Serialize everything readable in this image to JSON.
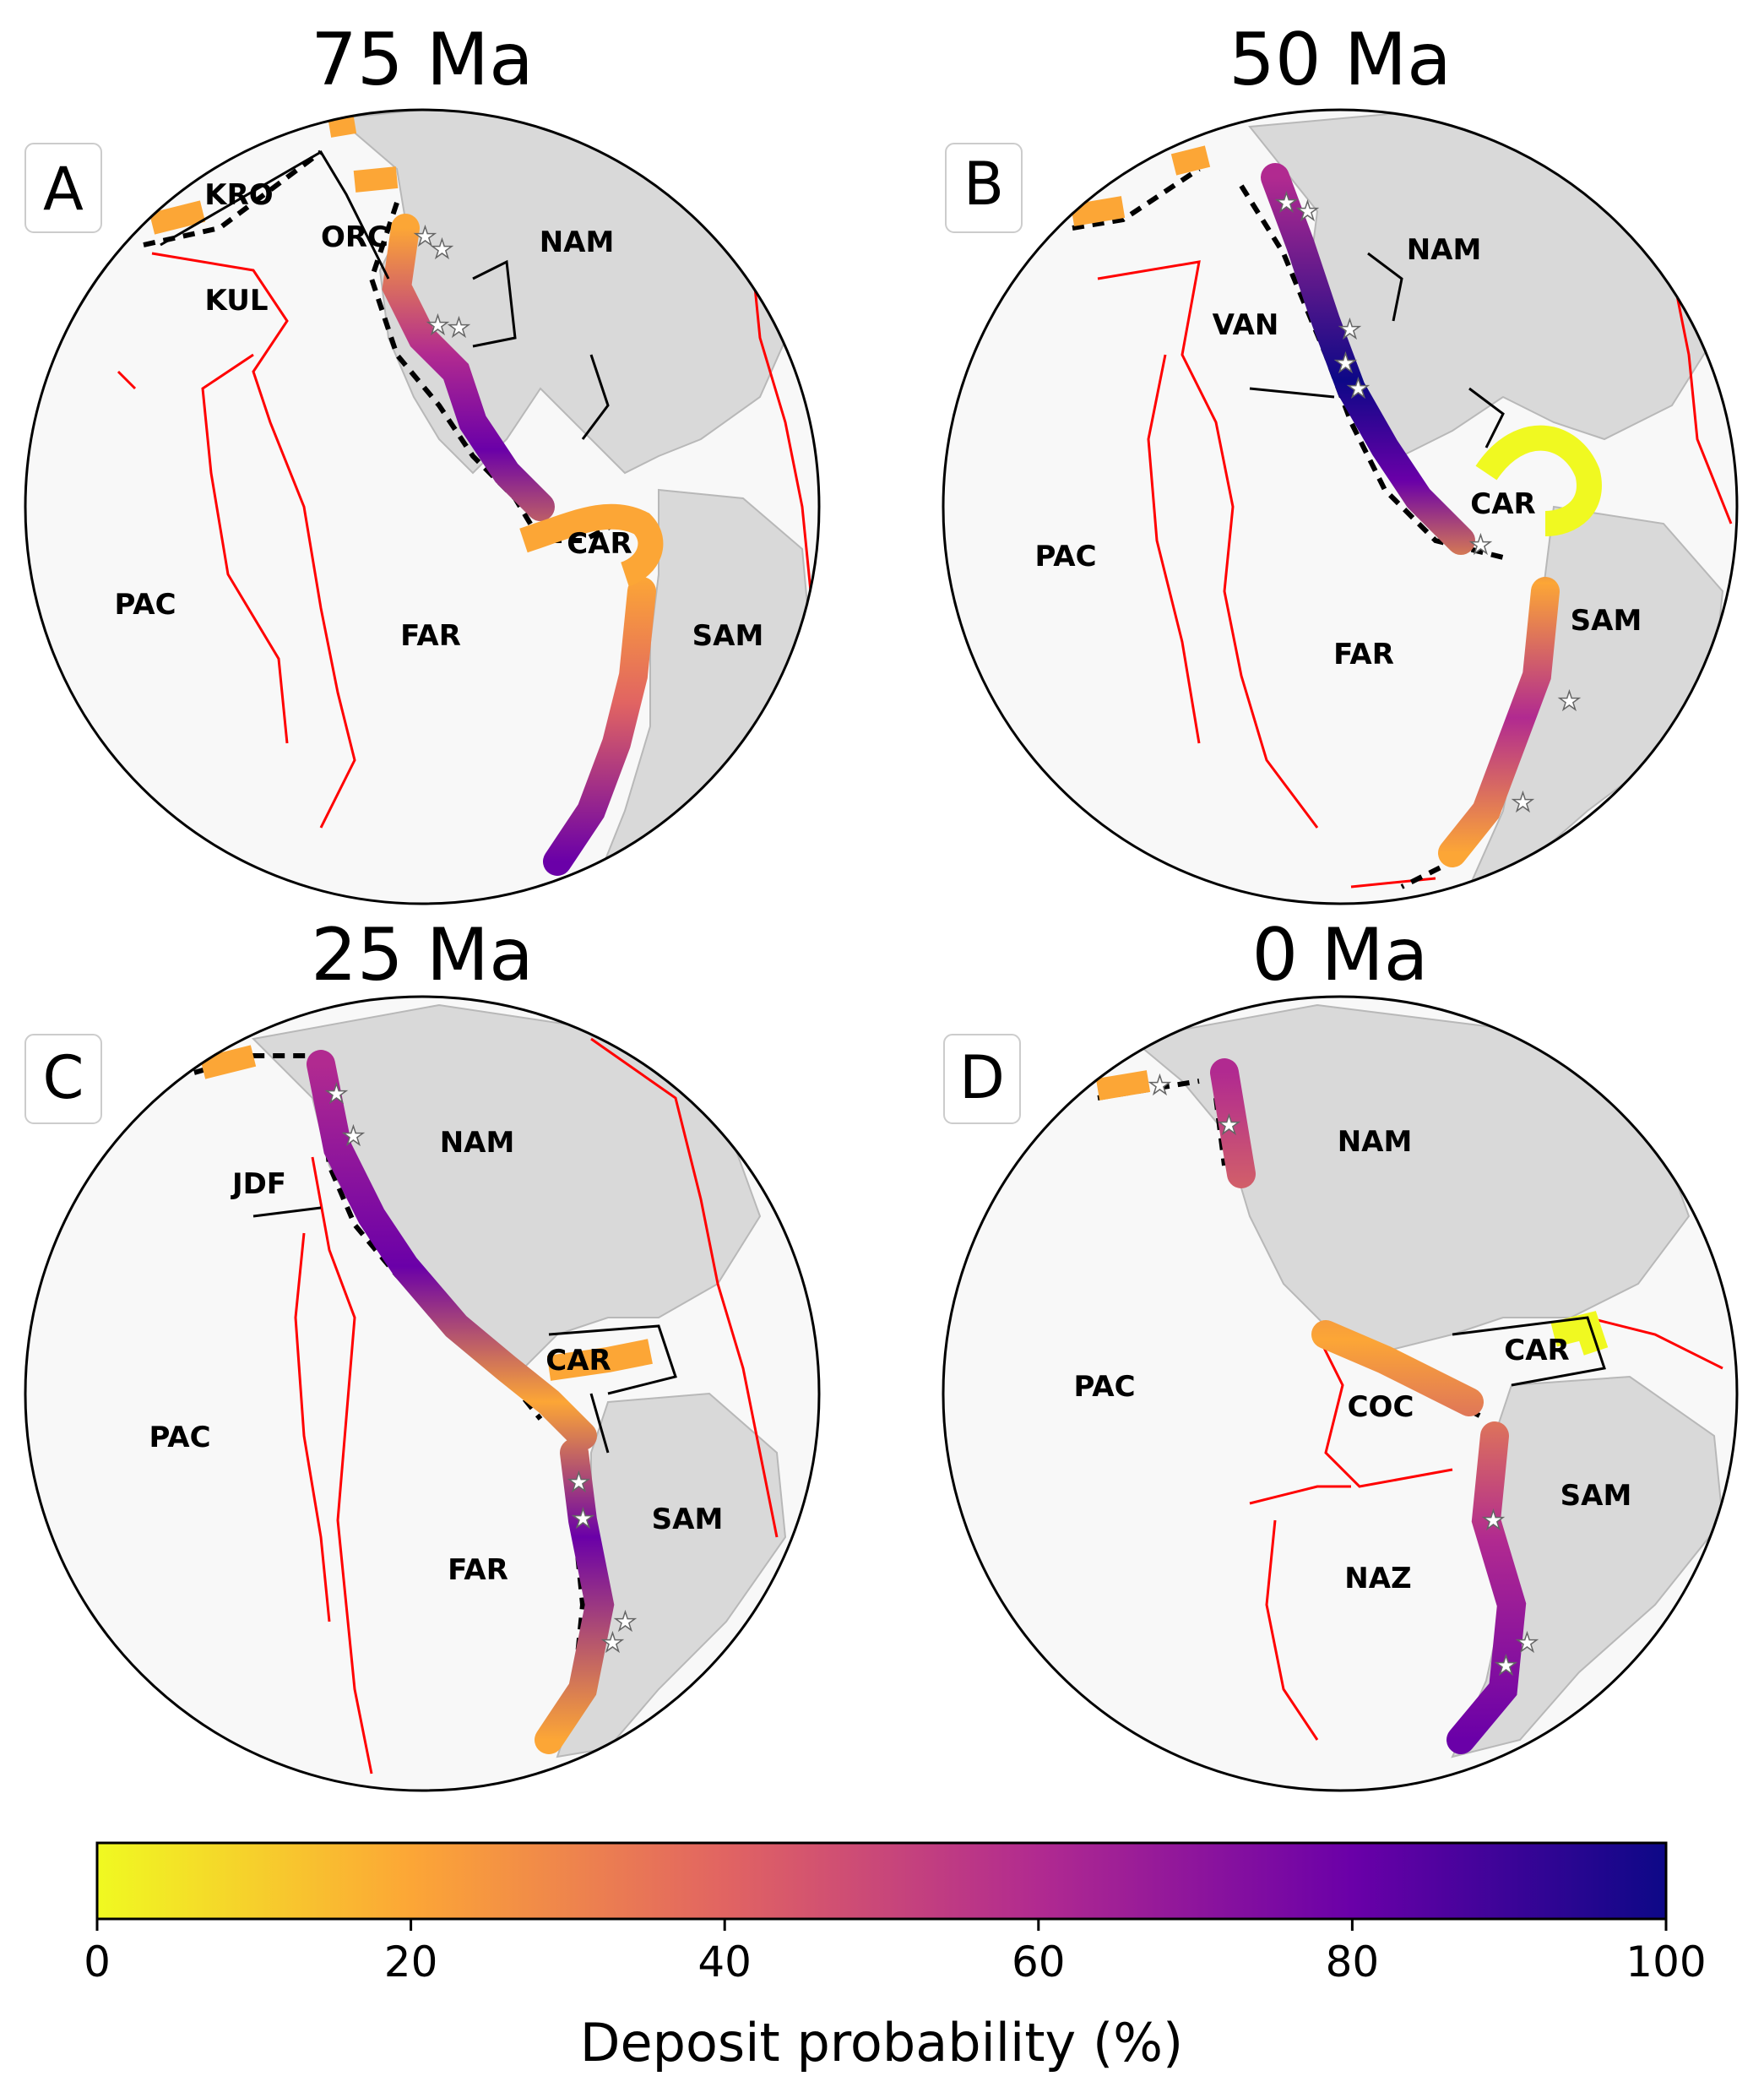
{
  "panels": [
    {
      "id": "A",
      "title": "75 Ma",
      "letter": "A",
      "plates": [
        "KRO",
        "ORC",
        "KUL",
        "NAM",
        "PAC",
        "FAR",
        "CAR",
        "SAM"
      ]
    },
    {
      "id": "B",
      "title": "50 Ma",
      "letter": "B",
      "plates": [
        "NAM",
        "VAN",
        "CAR",
        "PAC",
        "FAR",
        "SAM"
      ]
    },
    {
      "id": "C",
      "title": "25 Ma",
      "letter": "C",
      "plates": [
        "NAM",
        "JDF",
        "CAR",
        "PAC",
        "SAM",
        "FAR"
      ]
    },
    {
      "id": "D",
      "title": "0 Ma",
      "letter": "D",
      "plates": [
        "NAM",
        "CAR",
        "PAC",
        "COC",
        "SAM",
        "NAZ"
      ]
    }
  ],
  "colorbar": {
    "label": "Deposit probability (%)",
    "ticks": [
      "0",
      "20",
      "40",
      "60",
      "80",
      "100"
    ],
    "range": [
      0,
      100
    ],
    "colormap": "plasma (reversed)",
    "colors": [
      "#f0f921",
      "#fca636",
      "#e16462",
      "#b12a90",
      "#6a00a8",
      "#0d0887"
    ]
  },
  "legend_colors": {
    "land": "#d9d9d9",
    "ocean": "#f8f8f8",
    "plate_boundary": "#ff0000",
    "subduction": "#000000",
    "deposit_marker": "#ffffff"
  }
}
